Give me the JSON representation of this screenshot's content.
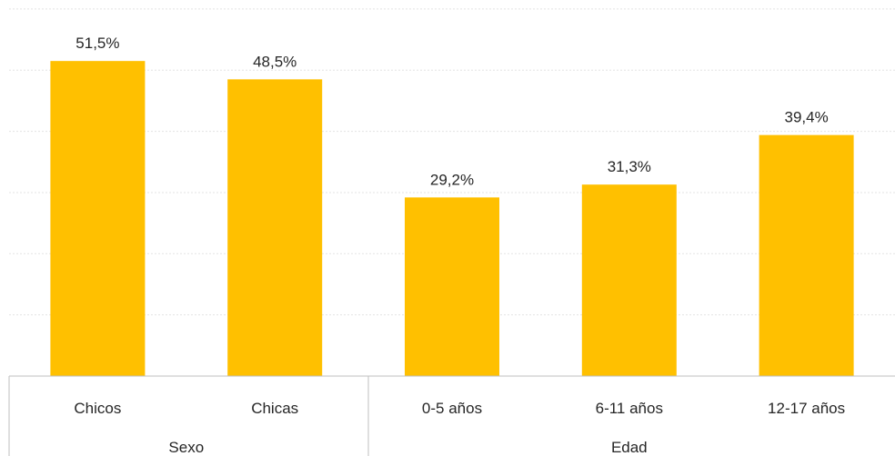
{
  "chart_data": {
    "type": "bar",
    "categories": [
      "Chicos",
      "Chicas",
      "0-5 años",
      "6-11 años",
      "12-17 años"
    ],
    "values": [
      51.5,
      48.5,
      29.2,
      31.3,
      39.4
    ],
    "value_labels": [
      "51,5%",
      "48,5%",
      "29,2%",
      "31,3%",
      "39,4%"
    ],
    "groups": [
      {
        "label": "Sexo",
        "categories": [
          "Chicos",
          "Chicas"
        ]
      },
      {
        "label": "Edad",
        "categories": [
          "0-5 años",
          "6-11 años",
          "12-17 años"
        ]
      }
    ],
    "title": "",
    "xlabel": "",
    "ylabel": "",
    "ylim": [
      0,
      60
    ],
    "grid": true,
    "bar_color": "#FFC000"
  }
}
